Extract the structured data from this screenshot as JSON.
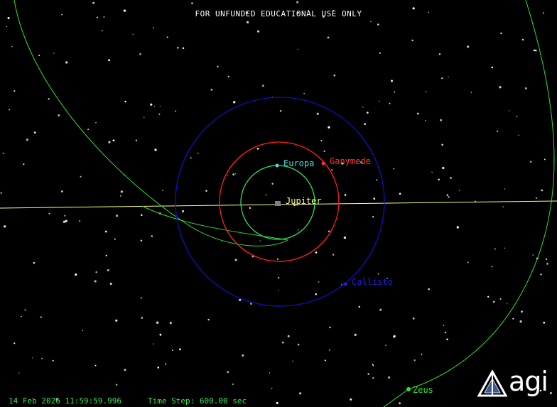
{
  "banner": "FOR UNFUNDED EDUCATIONAL USE ONLY",
  "status": {
    "date": "14 Feb 2026 11:59:59.996",
    "time_step": "Time Step: 600.00 sec"
  },
  "objects": {
    "jupiter": {
      "label": "Jupiter",
      "color": "#ffff80"
    },
    "europa": {
      "label": "Europa",
      "color": "#40e0e0"
    },
    "ganymede": {
      "label": "Ganymede",
      "color": "#ff3030"
    },
    "callisto": {
      "label": "Callisto",
      "color": "#2020e0"
    },
    "zeus": {
      "label": "Zeus",
      "color": "#30e030"
    }
  },
  "logo": {
    "text": "agi",
    "icon": "agi-logo-icon"
  },
  "colors": {
    "background": "#000000",
    "equator_line": "#ffff80",
    "europa_orbit": "#30e060",
    "ganymede_orbit": "#ff2020",
    "callisto_orbit": "#1010c0",
    "zeus_trajectory": "#30e030"
  }
}
